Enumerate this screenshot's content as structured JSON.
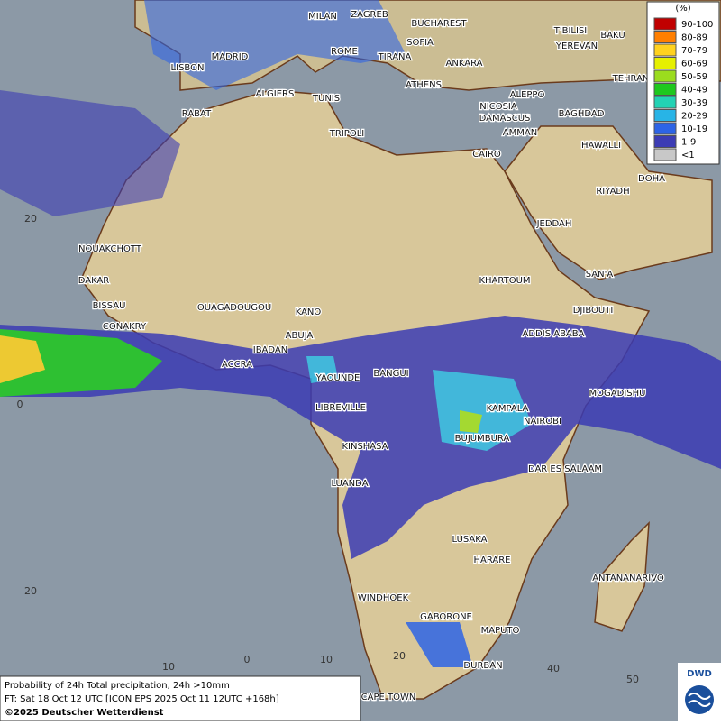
{
  "legend": {
    "title": "(%)",
    "entries": [
      {
        "label": "90-100",
        "color": "#c00000"
      },
      {
        "label": "80-89",
        "color": "#ff7f00"
      },
      {
        "label": "70-79",
        "color": "#ffd21e"
      },
      {
        "label": "60-69",
        "color": "#e6f000"
      },
      {
        "label": "50-59",
        "color": "#9bdc1e"
      },
      {
        "label": "40-49",
        "color": "#1ec81e"
      },
      {
        "label": "30-39",
        "color": "#23d2b4"
      },
      {
        "label": "20-29",
        "color": "#28b4e6"
      },
      {
        "label": "10-19",
        "color": "#2d64e6"
      },
      {
        "label": "1-9",
        "color": "#3c3cb4"
      },
      {
        "label": "<1",
        "color": "#c8c8c8"
      }
    ]
  },
  "cities": [
    "MILAN",
    "ZAGREB",
    "BUCHAREST",
    "T'BILISI",
    "BAKU",
    "MADRID",
    "ROME",
    "SOFIA",
    "YEREVAN",
    "LISBON",
    "TIRANA",
    "ANKARA",
    "TEHRAN",
    "ALGIERS",
    "TUNIS",
    "ATHENS",
    "ALEPPO",
    "RABAT",
    "NICOSIA",
    "BAGHDAD",
    "DAMASCUS",
    "AMMAN",
    "TRIPOLI",
    "HAWALLI",
    "CAIRO",
    "DOHA",
    "RIYADH",
    "JEDDAH",
    "NOUAKCHOTT",
    "KHARTOUM",
    "SAN'A",
    "DAKAR",
    "BISSAU",
    "OUAGADOUGOU",
    "KANO",
    "DJIBOUTI",
    "CONAKRY",
    "ABUJA",
    "ADDIS ABABA",
    "IBADAN",
    "ACCRA",
    "YAOUNDE",
    "BANGUI",
    "MOGADISHU",
    "LIBREVILLE",
    "KAMPALA",
    "NAIROBI",
    "BUJUMBURA",
    "KINSHASA",
    "DAR ES SALAAM",
    "LUANDA",
    "LUSAKA",
    "HARARE",
    "ANTANANARIVO",
    "WINDHOEK",
    "GABORONE",
    "MAPUTO",
    "DURBAN",
    "CAPE TOWN"
  ],
  "grid_labels": [
    "20",
    "0",
    "20",
    "10",
    "0",
    "10",
    "20",
    "40",
    "50"
  ],
  "footer": {
    "line1": "Probability of 24h Total precipitation, 24h >10mm",
    "line2": "FT: Sat 18 Oct 12 UTC [ICON EPS 2025 Oct 11 12UTC +168h]",
    "line3": "©2025 Deutscher Wetterdienst"
  },
  "logo": "DWD"
}
